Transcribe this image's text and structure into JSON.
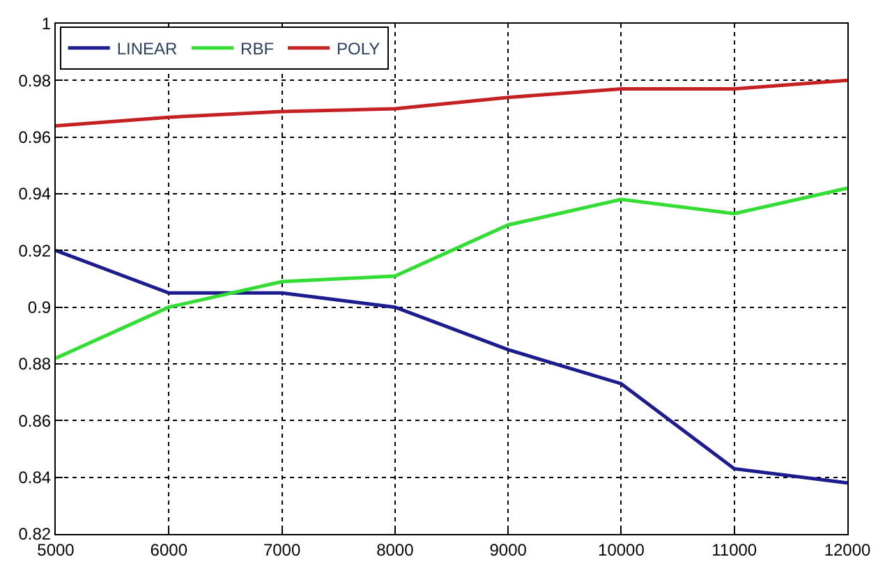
{
  "chart_data": {
    "type": "line",
    "x": [
      5000,
      6000,
      7000,
      8000,
      9000,
      10000,
      11000,
      12000
    ],
    "series": [
      {
        "name": "LINEAR",
        "color": "#1c1c8e",
        "values": [
          0.92,
          0.905,
          0.905,
          0.9,
          0.885,
          0.873,
          0.843,
          0.838
        ]
      },
      {
        "name": "RBF",
        "color": "#33dd33",
        "values": [
          0.882,
          0.9,
          0.909,
          0.911,
          0.929,
          0.938,
          0.933,
          0.942
        ]
      },
      {
        "name": "POLY",
        "color": "#c42222",
        "values": [
          0.964,
          0.967,
          0.969,
          0.97,
          0.974,
          0.977,
          0.977,
          0.98
        ]
      }
    ],
    "xlim": [
      5000,
      12000
    ],
    "xticks": [
      5000,
      6000,
      7000,
      8000,
      9000,
      10000,
      11000,
      12000
    ],
    "ylim": [
      0.82,
      1
    ],
    "yticks": [
      0.82,
      0.84,
      0.86,
      0.88,
      0.9,
      0.92,
      0.94,
      0.96,
      0.98,
      1
    ],
    "grid": true,
    "legend": "top left",
    "line_style": "solid",
    "marker": "none"
  }
}
